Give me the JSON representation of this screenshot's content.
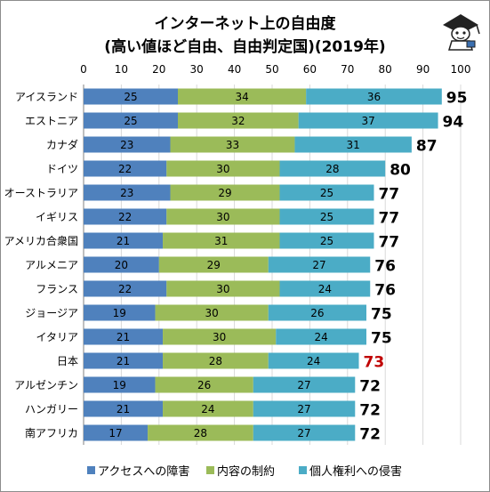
{
  "chart_data": {
    "type": "bar",
    "orientation": "horizontal",
    "stacked": true,
    "title": "インターネット上の自由度",
    "subtitle": "(高い値ほど自由、自由判定国)(2019年)",
    "categories": [
      "アイスランド",
      "エストニア",
      "カナダ",
      "ドイツ",
      "オーストラリア",
      "イギリス",
      "アメリカ合衆国",
      "アルメニア",
      "フランス",
      "ジョージア",
      "イタリア",
      "日本",
      "アルゼンチン",
      "ハンガリー",
      "南アフリカ"
    ],
    "series": [
      {
        "name": "アクセスへの障害",
        "color": "#4f81bd",
        "values": [
          25,
          25,
          23,
          22,
          23,
          22,
          21,
          20,
          22,
          19,
          21,
          21,
          19,
          21,
          17
        ]
      },
      {
        "name": "内容の制約",
        "color": "#9bbb59",
        "values": [
          34,
          32,
          33,
          30,
          29,
          30,
          31,
          29,
          30,
          30,
          30,
          28,
          26,
          24,
          28
        ]
      },
      {
        "name": "個人権利への侵害",
        "color": "#4bacc6",
        "values": [
          36,
          37,
          31,
          28,
          25,
          25,
          25,
          27,
          24,
          26,
          24,
          24,
          27,
          27,
          27
        ]
      }
    ],
    "totals": [
      95,
      94,
      87,
      80,
      77,
      77,
      77,
      76,
      76,
      75,
      75,
      73,
      72,
      72,
      72
    ],
    "highlight_category": "日本",
    "highlight_color": "#c00000",
    "xlim": [
      0,
      100
    ],
    "xticks": [
      0,
      10,
      20,
      30,
      40,
      50,
      60,
      70,
      80,
      90,
      100
    ],
    "grid": true,
    "legend_position": "bottom"
  }
}
